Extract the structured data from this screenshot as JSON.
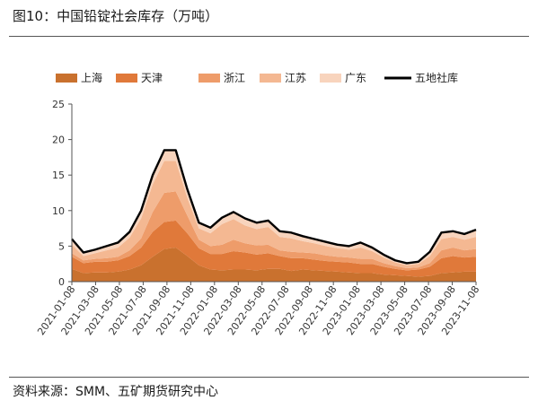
{
  "figure": {
    "title": "图10：中国铅锭社会库存（万吨）",
    "source": "资料来源：SMM、五矿期货研究中心"
  },
  "chart_data": {
    "type": "area",
    "stacked": true,
    "xlabel": "",
    "ylabel": "",
    "ylim": [
      0,
      25
    ],
    "yticks": [
      0,
      5,
      10,
      15,
      20,
      25
    ],
    "grid": false,
    "legend_position": "top",
    "x_tick_labels": [
      "2021-01-08",
      "2021-03-08",
      "2021-05-08",
      "2021-07-08",
      "2021-09-08",
      "2021-11-08",
      "2022-01-08",
      "2022-03-08",
      "2022-05-08",
      "2022-07-08",
      "2022-09-08",
      "2022-11-08",
      "2023-01-08",
      "2023-03-08",
      "2023-05-08",
      "2023-07-08",
      "2023-09-08",
      "2023-11-08"
    ],
    "x": [
      "2021-01",
      "2021-02",
      "2021-03",
      "2021-04",
      "2021-05",
      "2021-06",
      "2021-07",
      "2021-08",
      "2021-09",
      "2021-10",
      "2021-11",
      "2021-12",
      "2022-01",
      "2022-02",
      "2022-03",
      "2022-04",
      "2022-05",
      "2022-06",
      "2022-07",
      "2022-08",
      "2022-09",
      "2022-10",
      "2022-11",
      "2022-12",
      "2023-01",
      "2023-02",
      "2023-03",
      "2023-04",
      "2023-05",
      "2023-06",
      "2023-07",
      "2023-08",
      "2023-09",
      "2023-10",
      "2023-11",
      "2023-12"
    ],
    "series": [
      {
        "name": "上海",
        "color": "#c9712e",
        "values": [
          1.8,
          1.2,
          1.3,
          1.3,
          1.4,
          1.7,
          2.3,
          3.5,
          4.6,
          4.8,
          3.6,
          2.3,
          1.7,
          1.6,
          1.7,
          1.7,
          1.6,
          1.8,
          1.8,
          1.5,
          1.7,
          1.6,
          1.5,
          1.4,
          1.3,
          1.2,
          1.2,
          1.0,
          0.9,
          0.8,
          0.7,
          0.8,
          1.2,
          1.3,
          1.4,
          1.4
        ]
      },
      {
        "name": "天津",
        "color": "#e0793a",
        "values": [
          1.7,
          1.4,
          1.5,
          1.5,
          1.6,
          1.9,
          2.5,
          3.5,
          3.8,
          3.8,
          3.2,
          2.4,
          2.2,
          2.3,
          2.6,
          2.4,
          2.2,
          2.2,
          1.8,
          1.8,
          1.6,
          1.5,
          1.4,
          1.4,
          1.4,
          1.3,
          1.3,
          1.1,
          0.9,
          0.8,
          1.0,
          1.3,
          2.1,
          2.3,
          2.0,
          2.1
        ]
      },
      {
        "name": "浙江",
        "color": "#ee9c6a",
        "values": [
          0.5,
          0.4,
          0.4,
          0.5,
          0.5,
          0.8,
          1.3,
          2.8,
          4.1,
          4.1,
          2.5,
          1.2,
          1.1,
          1.3,
          1.6,
          1.3,
          1.3,
          1.2,
          0.8,
          0.9,
          0.8,
          0.9,
          0.8,
          0.7,
          0.7,
          0.7,
          0.7,
          0.5,
          0.4,
          0.3,
          0.3,
          0.5,
          1.1,
          1.2,
          1.0,
          1.1
        ]
      },
      {
        "name": "江苏",
        "color": "#f4b892",
        "values": [
          1.2,
          0.6,
          0.8,
          1.1,
          1.3,
          1.8,
          2.8,
          3.9,
          4.5,
          4.3,
          2.5,
          1.6,
          1.8,
          2.9,
          2.9,
          2.5,
          2.3,
          2.5,
          1.9,
          1.9,
          1.6,
          1.4,
          1.3,
          1.2,
          1.1,
          1.6,
          1.1,
          0.8,
          0.5,
          0.4,
          0.5,
          1.0,
          1.6,
          1.5,
          1.5,
          1.7
        ]
      },
      {
        "name": "广东",
        "color": "#f8d4bd",
        "values": [
          0.8,
          0.5,
          0.5,
          0.6,
          0.7,
          0.8,
          1.1,
          1.3,
          1.5,
          1.5,
          1.2,
          0.8,
          0.8,
          0.9,
          1.0,
          1.0,
          0.9,
          0.9,
          0.8,
          0.8,
          0.7,
          0.6,
          0.6,
          0.5,
          0.5,
          0.7,
          0.5,
          0.4,
          0.3,
          0.3,
          0.3,
          0.6,
          0.9,
          0.8,
          0.8,
          1.0
        ]
      }
    ],
    "total": {
      "name": "五地社库",
      "color": "#000000",
      "values": [
        6.0,
        4.1,
        4.5,
        5.0,
        5.5,
        7.0,
        10.0,
        15.0,
        18.5,
        18.5,
        13.0,
        8.3,
        7.6,
        9.0,
        9.8,
        8.9,
        8.3,
        8.6,
        7.1,
        6.9,
        6.4,
        6.0,
        5.6,
        5.2,
        5.0,
        5.5,
        4.8,
        3.8,
        3.0,
        2.6,
        2.8,
        4.2,
        6.9,
        7.1,
        6.7,
        7.3
      ]
    }
  }
}
